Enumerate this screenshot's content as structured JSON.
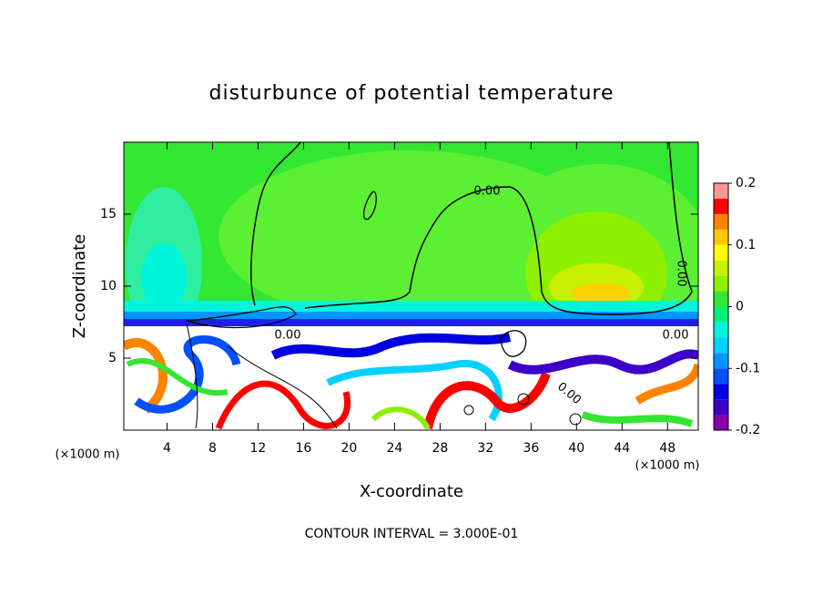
{
  "chart_data": {
    "type": "contour",
    "title": "disturbunce of potential temperature",
    "x_label": "X-coordinate",
    "y_label": "Z-coordinate",
    "x_unit": "(×1000 m)",
    "footer": "CONTOUR INTERVAL = 3.000E-01",
    "xlim": [
      0.2,
      50.7
    ],
    "xticks": [
      4,
      8,
      12,
      16,
      20,
      24,
      28,
      32,
      36,
      40,
      44,
      48
    ],
    "ylim": [
      0,
      20
    ],
    "yticks": [
      5,
      10,
      15
    ],
    "contour_labels": [
      "0.00",
      "0.00",
      "0.00",
      "0.00",
      "0.00"
    ],
    "colorbar": {
      "lim": [
        -0.2,
        0.2
      ],
      "ticks": [
        -0.2,
        -0.1,
        0,
        0.1,
        0.2
      ],
      "levels": [
        -0.2,
        -0.175,
        -0.15,
        -0.125,
        -0.1,
        -0.075,
        -0.05,
        -0.025,
        0,
        0.025,
        0.05,
        0.075,
        0.1,
        0.125,
        0.15,
        0.175,
        0.2
      ],
      "colors": [
        "#8a00a8",
        "#3c00c8",
        "#0000e0",
        "#0050ff",
        "#0096ff",
        "#00d2ff",
        "#00f5dc",
        "#00f078",
        "#32e632",
        "#8cf000",
        "#c8f000",
        "#ffff00",
        "#ffc800",
        "#ff8200",
        "#ff0000",
        "#ff9696"
      ]
    }
  }
}
